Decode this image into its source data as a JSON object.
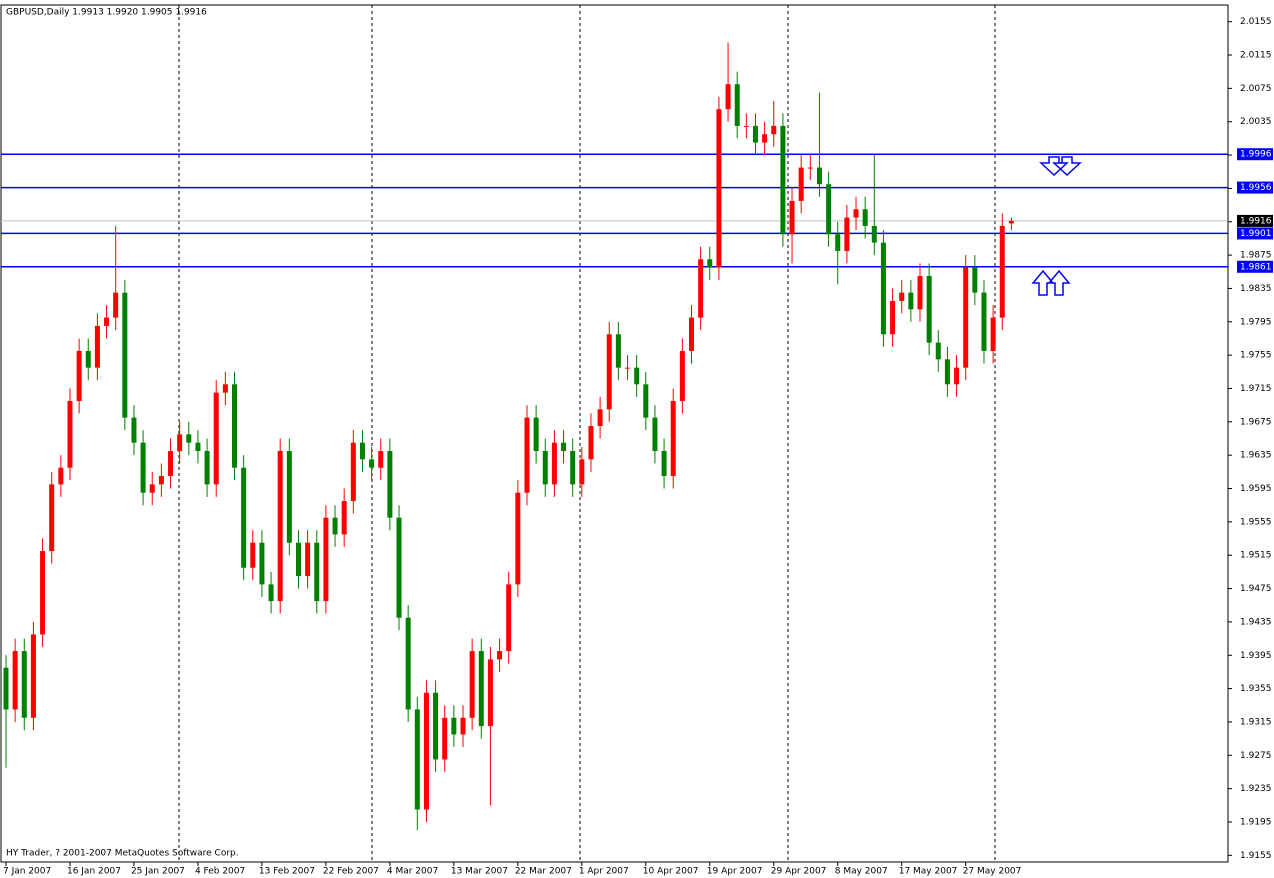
{
  "chart_data": {
    "type": "candlestick",
    "title": "GBPUSD,Daily  1.9913 1.9920 1.9905 1.9916",
    "footer": "HY Trader, ? 2001-2007 MetaQuotes Software Corp.",
    "up_color": "#ff0000",
    "down_color": "#008000",
    "categories": [
      "7 Jan 2007",
      null,
      null,
      null,
      null,
      null,
      null,
      "16 Jan 2007",
      null,
      null,
      null,
      null,
      null,
      null,
      "25 Jan 2007",
      null,
      null,
      null,
      null,
      null,
      null,
      "4 Feb 2007",
      null,
      null,
      null,
      null,
      null,
      null,
      "13 Feb 2007",
      null,
      null,
      null,
      null,
      null,
      null,
      "22 Feb 2007",
      null,
      null,
      null,
      null,
      null,
      null,
      "4 Mar 2007",
      null,
      null,
      null,
      null,
      null,
      null,
      "13 Mar 2007",
      null,
      null,
      null,
      null,
      null,
      null,
      "22 Mar 2007",
      null,
      null,
      null,
      null,
      null,
      null,
      "1 Apr 2007",
      null,
      null,
      null,
      null,
      null,
      null,
      "10 Apr 2007",
      null,
      null,
      null,
      null,
      null,
      null,
      "19 Apr 2007",
      null,
      null,
      null,
      null,
      null,
      null,
      "29 Apr 2007",
      null,
      null,
      null,
      null,
      null,
      null,
      "8 May 2007",
      null,
      null,
      null,
      null,
      null,
      null,
      "17 May 2007",
      null,
      null,
      null,
      null,
      null,
      null,
      "27 May 2007",
      null,
      null,
      null,
      null,
      null
    ],
    "open": [
      1.938,
      1.933,
      1.94,
      1.932,
      1.942,
      1.952,
      1.96,
      1.962,
      1.97,
      1.976,
      1.974,
      1.979,
      1.98,
      1.983,
      1.968,
      1.965,
      1.959,
      1.96,
      1.961,
      1.964,
      1.966,
      1.965,
      1.964,
      1.96,
      1.971,
      1.972,
      1.962,
      1.95,
      1.953,
      1.948,
      1.946,
      1.964,
      1.953,
      1.949,
      1.953,
      1.946,
      1.956,
      1.954,
      1.958,
      1.965,
      1.963,
      1.962,
      1.964,
      1.956,
      1.944,
      1.933,
      1.921,
      1.935,
      1.927,
      1.932,
      1.93,
      1.932,
      1.94,
      1.931,
      1.939,
      1.94,
      1.948,
      1.959,
      1.968,
      1.964,
      1.96,
      1.965,
      1.964,
      1.96,
      1.963,
      1.967,
      1.969,
      1.978,
      1.974,
      1.974,
      1.972,
      1.968,
      1.964,
      1.961,
      1.97,
      1.976,
      1.98,
      1.987,
      1.986,
      2.005,
      2.008,
      2.003,
      2.003,
      2.001,
      2.002,
      2.003,
      1.99,
      1.994,
      1.998,
      1.998,
      1.996,
      1.99,
      1.988,
      1.992,
      1.993,
      1.991,
      1.989,
      1.978,
      1.982,
      1.983,
      1.981,
      1.985,
      1.977,
      1.975,
      1.972,
      1.974,
      1.986,
      1.983,
      1.976,
      1.98,
      1.9913
    ],
    "high": [
      1.9395,
      1.9415,
      1.9415,
      1.9435,
      1.9535,
      1.9615,
      1.9635,
      1.9715,
      1.9775,
      1.9775,
      1.9805,
      1.9815,
      1.991,
      1.9845,
      1.9695,
      1.9665,
      1.9615,
      1.9625,
      1.9655,
      1.9675,
      1.9675,
      1.9665,
      1.9655,
      1.9725,
      1.9735,
      1.9735,
      1.9635,
      1.9545,
      1.9545,
      1.9495,
      1.9655,
      1.9655,
      1.9545,
      1.9545,
      1.9545,
      1.9575,
      1.9575,
      1.9595,
      1.9665,
      1.9665,
      1.9645,
      1.9655,
      1.9655,
      1.9575,
      1.9455,
      1.9345,
      1.9365,
      1.9365,
      1.9335,
      1.9335,
      1.9335,
      1.9415,
      1.9415,
      1.9405,
      1.9415,
      1.9495,
      1.9605,
      1.9695,
      1.9695,
      1.9655,
      1.9665,
      1.9665,
      1.9655,
      1.9645,
      1.9685,
      1.9705,
      1.9795,
      1.9795,
      1.9755,
      1.9755,
      1.9735,
      1.9695,
      1.9655,
      1.9715,
      1.9775,
      1.9815,
      1.9885,
      1.9885,
      2.0065,
      2.013,
      2.0095,
      2.0045,
      2.0045,
      2.0035,
      2.006,
      2.0045,
      1.9955,
      1.9995,
      1.9995,
      2.007,
      1.9975,
      1.9915,
      1.9935,
      1.9945,
      1.9945,
      1.9995,
      1.9905,
      1.9835,
      1.9845,
      1.9845,
      1.9865,
      1.9865,
      1.9785,
      1.9765,
      1.9755,
      1.9875,
      1.9875,
      1.9845,
      1.9815,
      1.9925,
      1.992
    ],
    "low": [
      1.926,
      1.9315,
      1.9305,
      1.9305,
      1.9405,
      1.9505,
      1.9585,
      1.9605,
      1.9685,
      1.9725,
      1.9725,
      1.9775,
      1.9785,
      1.9665,
      1.9635,
      1.9575,
      1.9575,
      1.9585,
      1.9595,
      1.9625,
      1.9635,
      1.9625,
      1.9585,
      1.9585,
      1.9695,
      1.9605,
      1.9485,
      1.9485,
      1.9465,
      1.9445,
      1.9445,
      1.9515,
      1.9475,
      1.9475,
      1.9445,
      1.9445,
      1.9525,
      1.9525,
      1.9565,
      1.9615,
      1.9605,
      1.9605,
      1.9545,
      1.9425,
      1.9315,
      1.9185,
      1.9195,
      1.9255,
      1.9255,
      1.9285,
      1.9285,
      1.9305,
      1.9295,
      1.9215,
      1.9375,
      1.9385,
      1.9465,
      1.9575,
      1.9625,
      1.9585,
      1.9585,
      1.9625,
      1.9585,
      1.9585,
      1.9615,
      1.9655,
      1.9675,
      1.9725,
      1.9725,
      1.9705,
      1.9665,
      1.9625,
      1.9595,
      1.9595,
      1.9685,
      1.9745,
      1.9785,
      1.9845,
      1.9845,
      2.0035,
      2.0015,
      2.0015,
      1.9995,
      1.9995,
      2.0005,
      1.9885,
      1.9865,
      1.9925,
      1.9965,
      1.9945,
      1.9885,
      1.984,
      1.9865,
      1.9905,
      1.9895,
      1.9875,
      1.9765,
      1.9765,
      1.9805,
      1.9795,
      1.9795,
      1.9755,
      1.9735,
      1.9705,
      1.9705,
      1.9725,
      1.9815,
      1.9745,
      1.9745,
      1.9785,
      1.9905
    ],
    "close": [
      1.933,
      1.94,
      1.932,
      1.942,
      1.952,
      1.96,
      1.962,
      1.97,
      1.976,
      1.974,
      1.979,
      1.98,
      1.983,
      1.968,
      1.965,
      1.959,
      1.96,
      1.961,
      1.964,
      1.966,
      1.965,
      1.964,
      1.96,
      1.971,
      1.972,
      1.962,
      1.95,
      1.953,
      1.948,
      1.946,
      1.964,
      1.953,
      1.949,
      1.953,
      1.946,
      1.956,
      1.954,
      1.958,
      1.965,
      1.963,
      1.962,
      1.964,
      1.956,
      1.944,
      1.933,
      1.921,
      1.935,
      1.927,
      1.932,
      1.93,
      1.932,
      1.94,
      1.931,
      1.939,
      1.94,
      1.948,
      1.959,
      1.968,
      1.964,
      1.96,
      1.965,
      1.964,
      1.96,
      1.963,
      1.967,
      1.969,
      1.978,
      1.974,
      1.974,
      1.972,
      1.968,
      1.964,
      1.961,
      1.97,
      1.976,
      1.98,
      1.987,
      1.986,
      2.005,
      2.008,
      2.003,
      2.003,
      2.001,
      2.002,
      2.003,
      1.99,
      1.994,
      1.998,
      1.998,
      1.996,
      1.99,
      1.988,
      1.992,
      1.993,
      1.991,
      1.989,
      1.978,
      1.982,
      1.983,
      1.981,
      1.985,
      1.977,
      1.975,
      1.972,
      1.974,
      1.986,
      1.983,
      1.976,
      1.98,
      1.991,
      1.9916
    ],
    "levels": [
      1.9996,
      1.9956,
      1.9901,
      1.9861
    ],
    "level_color": "#0000ff",
    "ylim": [
      1.9147,
      2.0175
    ],
    "yticks": [
      2.0155,
      2.0115,
      2.0075,
      2.0035,
      1.9995,
      1.9955,
      1.9915,
      1.9875,
      1.9835,
      1.9795,
      1.9755,
      1.9715,
      1.9675,
      1.9635,
      1.9595,
      1.9555,
      1.9515,
      1.9475,
      1.9435,
      1.9395,
      1.9355,
      1.9315,
      1.9275,
      1.9235,
      1.9195,
      1.9155
    ]
  }
}
